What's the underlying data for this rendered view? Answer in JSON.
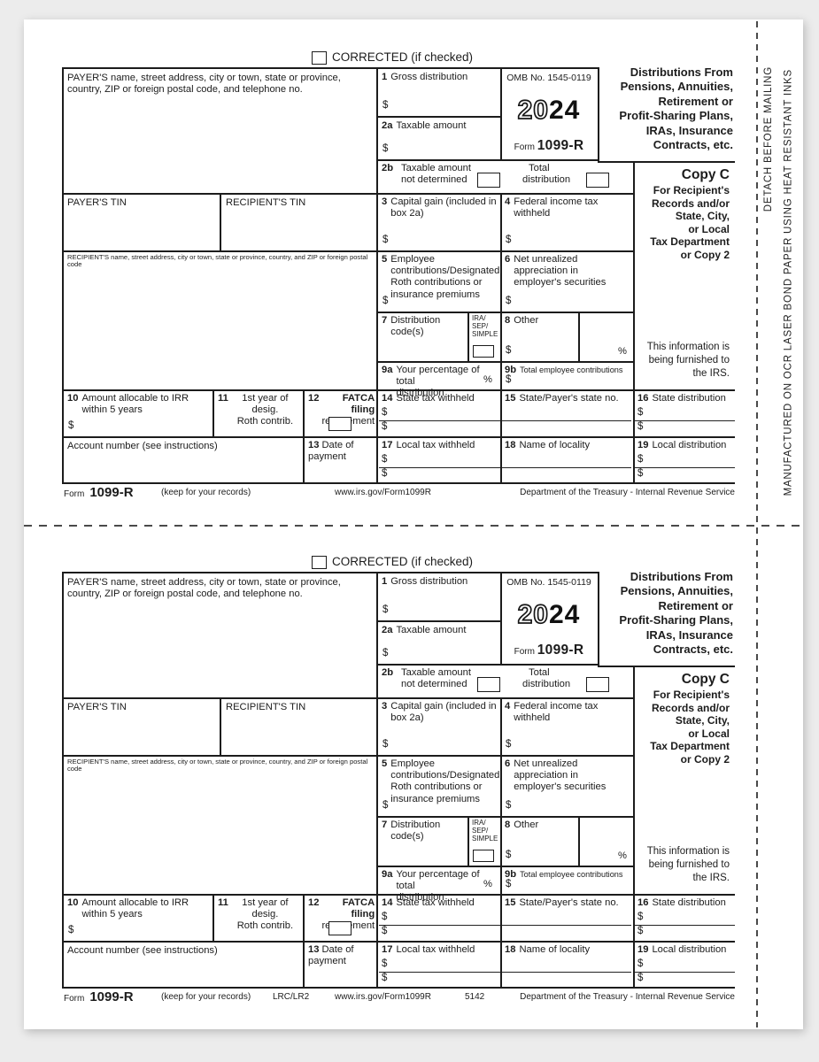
{
  "margin": {
    "detach": "DETACH BEFORE MAILING",
    "manufactured": "MANUFACTURED ON OCR LASER BOND PAPER USING HEAT RESISTANT INKS"
  },
  "form": {
    "corrected_label": "CORRECTED (if checked)",
    "dollar": "$",
    "percent": "%",
    "payer_info_label": "PAYER'S name, street address, city or town, state or province, country, ZIP or foreign postal code, and telephone no.",
    "omb_label": "OMB No. 1545-0119",
    "year_outline": "20",
    "year_bold": "24",
    "form_word": "Form",
    "form_number": "1099-R",
    "title_lines": [
      "Distributions From",
      "Pensions, Annuities,",
      "Retirement or",
      "Profit-Sharing Plans,",
      "IRAs, Insurance",
      "Contracts, etc."
    ],
    "copy_label": "Copy C",
    "copy_sub_lines": [
      "For Recipient's",
      "Records and/or",
      "State, City,",
      "or Local",
      "Tax Department",
      "or Copy 2"
    ],
    "furnished_lines": [
      "This information is",
      "being furnished to",
      "the IRS."
    ],
    "payer_tin_label": "PAYER'S TIN",
    "recipient_tin_label": "RECIPIENT'S TIN",
    "recipient_info_label": "RECIPIENT'S name, street address, city or town, state or province, country, and ZIP or foreign postal code",
    "account_label": "Account number (see instructions)",
    "box1": {
      "num": "1",
      "label": "Gross distribution"
    },
    "box2a": {
      "num": "2a",
      "label": "Taxable amount"
    },
    "box2b": {
      "num": "2b",
      "line1": "Taxable amount",
      "line2": "not determined",
      "total_line1": "Total",
      "total_line2": "distribution"
    },
    "box3": {
      "num": "3",
      "label": "Capital gain (included in box 2a)"
    },
    "box4": {
      "num": "4",
      "label": "Federal income tax withheld"
    },
    "box5": {
      "num": "5",
      "label": "Employee contributions/Designated Roth contributions or insurance premiums"
    },
    "box6": {
      "num": "6",
      "label": "Net unrealized appreciation in employer's securities"
    },
    "box7": {
      "num": "7",
      "label": "Distribution code(s)",
      "sub1": "IRA/",
      "sub2": "SEP/",
      "sub3": "SIMPLE"
    },
    "box8": {
      "num": "8",
      "label": "Other"
    },
    "box9a": {
      "num": "9a",
      "line1": "Your percentage of total",
      "line2": "distribution"
    },
    "box9b": {
      "num": "9b",
      "label": "Total employee contributions"
    },
    "box10": {
      "num": "10",
      "line1": "Amount allocable to IRR",
      "line2": "within 5 years"
    },
    "box11": {
      "num": "11",
      "line1": "1st year of desig.",
      "line2": "Roth contrib."
    },
    "box12": {
      "num": "12",
      "line1": "FATCA filing",
      "line2": "requirement"
    },
    "box13": {
      "num": "13",
      "line1": "Date of",
      "line2": "payment"
    },
    "box14": {
      "num": "14",
      "label": "State tax withheld"
    },
    "box15": {
      "num": "15",
      "label": "State/Payer's state no."
    },
    "box16": {
      "num": "16",
      "label": "State distribution"
    },
    "box17": {
      "num": "17",
      "label": "Local tax withheld"
    },
    "box18": {
      "num": "18",
      "label": "Name of locality"
    },
    "box19": {
      "num": "19",
      "label": "Local distribution"
    }
  },
  "footer": {
    "form_word": "Form",
    "form_number": "1099-R",
    "keep": "(keep for your records)",
    "url": "www.irs.gov/Form1099R",
    "dept": "Department of the Treasury - Internal Revenue Service"
  },
  "copies": [
    {
      "lrc": "",
      "code": ""
    },
    {
      "lrc": "LRC/LR2",
      "code": "5142"
    }
  ]
}
